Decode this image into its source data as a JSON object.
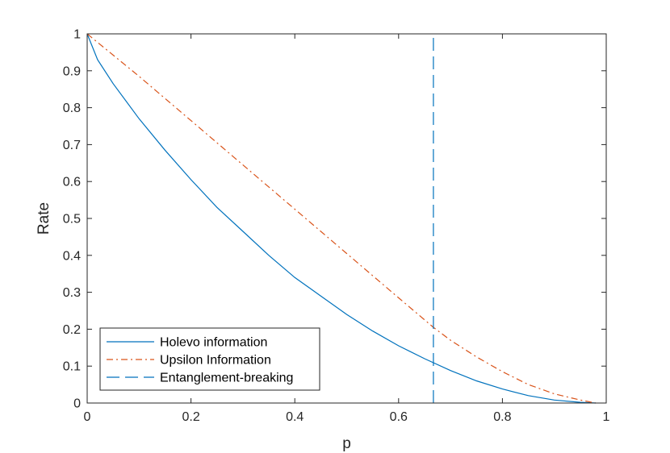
{
  "chart_data": {
    "type": "line",
    "title": "",
    "xlabel": "p",
    "ylabel": "Rate",
    "xlim": [
      0,
      1
    ],
    "ylim": [
      0,
      1
    ],
    "xticks": [
      "0",
      "0.2",
      "0.4",
      "0.6",
      "0.8",
      "1"
    ],
    "yticks": [
      "0",
      "0.1",
      "0.2",
      "0.3",
      "0.4",
      "0.5",
      "0.6",
      "0.7",
      "0.8",
      "0.9",
      "1"
    ],
    "grid": false,
    "legend_position": "bottom-left",
    "series": [
      {
        "name": "Holevo information",
        "color": "#0072BD",
        "style": "solid",
        "x": [
          0,
          0.02,
          0.05,
          0.1,
          0.15,
          0.2,
          0.25,
          0.3,
          0.35,
          0.4,
          0.45,
          0.5,
          0.55,
          0.6,
          0.65,
          0.7,
          0.75,
          0.8,
          0.85,
          0.9,
          0.95,
          0.98
        ],
        "y": [
          1,
          0.93,
          0.865,
          0.77,
          0.685,
          0.605,
          0.53,
          0.465,
          0.4,
          0.34,
          0.29,
          0.24,
          0.195,
          0.155,
          0.12,
          0.088,
          0.06,
          0.038,
          0.02,
          0.008,
          0.002,
          0
        ]
      },
      {
        "name": "Upsilon Information",
        "color": "#D95319",
        "style": "dash-dot",
        "x": [
          0,
          0.1,
          0.2,
          0.3,
          0.4,
          0.5,
          0.6,
          0.667,
          0.7,
          0.75,
          0.8,
          0.85,
          0.9,
          0.95,
          0.98
        ],
        "y": [
          1,
          0.885,
          0.765,
          0.645,
          0.525,
          0.405,
          0.285,
          0.205,
          0.17,
          0.125,
          0.085,
          0.05,
          0.025,
          0.008,
          0
        ]
      },
      {
        "name": "Entanglement-breaking",
        "color": "#0072BD",
        "style": "dashed",
        "x": [
          0.667,
          0.667
        ],
        "y": [
          0,
          1
        ]
      }
    ]
  }
}
